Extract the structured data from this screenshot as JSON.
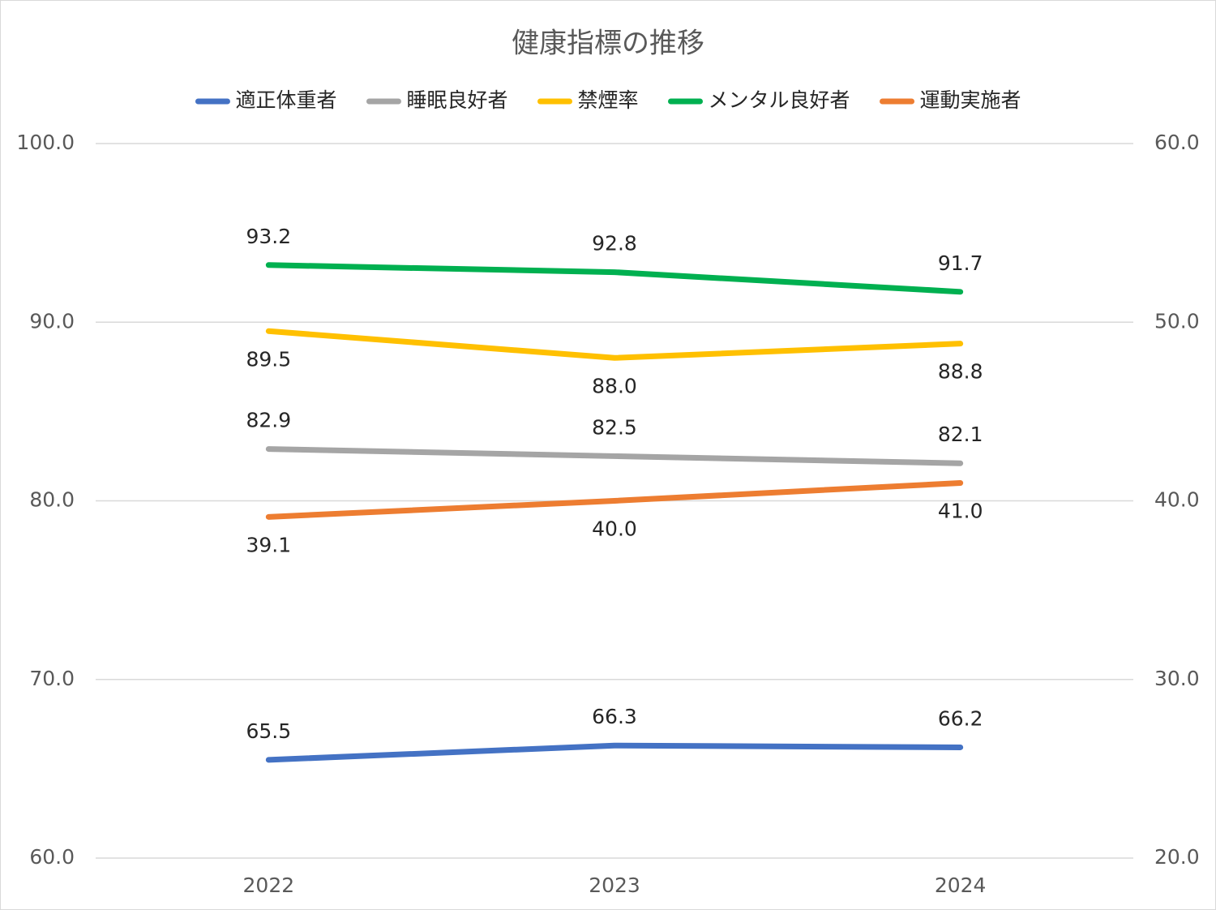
{
  "chart_data": {
    "type": "line",
    "title": "健康指標の推移",
    "categories": [
      "2022",
      "2023",
      "2024"
    ],
    "series": [
      {
        "name": "適正体重者",
        "color": "#4472c4",
        "values": [
          65.5,
          66.3,
          66.2
        ],
        "value_labels": [
          "65.5",
          "66.3",
          "66.2"
        ],
        "label_position": "above"
      },
      {
        "name": "睡眠良好者",
        "color": "#a5a5a5",
        "values": [
          82.9,
          82.5,
          82.1
        ],
        "value_labels": [
          "82.9",
          "82.5",
          "82.1"
        ],
        "label_position": "above"
      },
      {
        "name": "禁煙率",
        "color": "#ffc000",
        "values": [
          89.5,
          88.0,
          88.8
        ],
        "value_labels": [
          "89.5",
          "88.0",
          "88.8"
        ],
        "label_position": "below"
      },
      {
        "name": "メンタル良好者",
        "color": "#00b050",
        "values": [
          93.2,
          92.8,
          91.7
        ],
        "value_labels": [
          "93.2",
          "92.8",
          "91.7"
        ],
        "label_position": "above"
      },
      {
        "name": "運動実施者",
        "color": "#ed7d31",
        "values": [
          39.1,
          40.0,
          41.0
        ],
        "value_labels": [
          "39.1",
          "40.0",
          "41.0"
        ],
        "label_position": "below",
        "axis": "y2"
      }
    ],
    "ylim": [
      60,
      100
    ],
    "yticks": [
      {
        "value": 60,
        "label": "60.0"
      },
      {
        "value": 70,
        "label": "70.0"
      },
      {
        "value": 80,
        "label": "80.0"
      },
      {
        "value": 90,
        "label": "90.0"
      },
      {
        "value": 100,
        "label": "100.0"
      }
    ],
    "y2lim": [
      20,
      60
    ],
    "y2ticks": [
      {
        "value": 20,
        "label": "20.0"
      },
      {
        "value": 30,
        "label": "30.0"
      },
      {
        "value": 40,
        "label": "40.0"
      },
      {
        "value": 50,
        "label": "50.0"
      },
      {
        "value": 60,
        "label": "60.0"
      }
    ],
    "grid": true,
    "legend": "top"
  }
}
